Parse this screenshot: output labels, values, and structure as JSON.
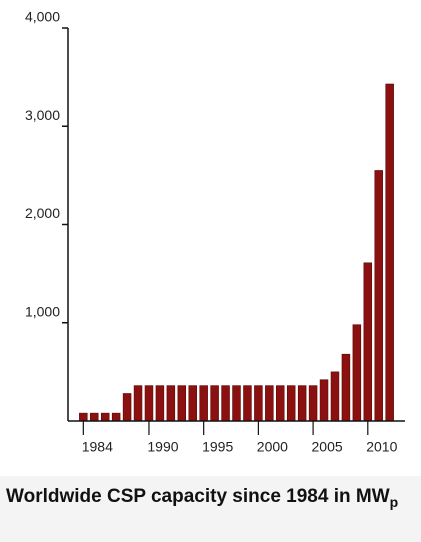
{
  "chart_data": {
    "type": "bar",
    "title": "Worldwide CSP capacity since 1984 in MW",
    "title_subscript": "p",
    "x": [
      1984,
      1985,
      1986,
      1987,
      1988,
      1989,
      1990,
      1991,
      1992,
      1993,
      1994,
      1995,
      1996,
      1997,
      1998,
      1999,
      2000,
      2001,
      2002,
      2003,
      2004,
      2005,
      2006,
      2007,
      2008,
      2009,
      2010,
      2011,
      2012
    ],
    "values": [
      80,
      80,
      80,
      80,
      280,
      360,
      360,
      360,
      360,
      360,
      360,
      360,
      360,
      360,
      360,
      360,
      360,
      360,
      360,
      360,
      360,
      360,
      420,
      500,
      680,
      980,
      1610,
      2550,
      3430
    ],
    "color": "#8b1010",
    "xlim": [
      1982.6,
      2013.4
    ],
    "xticks": [
      1984,
      1990,
      1995,
      2000,
      2005,
      2010
    ],
    "ylim": [
      0,
      4000
    ],
    "yticks": [
      {
        "value": 1000,
        "label": "1,000"
      },
      {
        "value": 2000,
        "label": "2,000"
      },
      {
        "value": 3000,
        "label": "3,000"
      },
      {
        "value": 4000,
        "label": "4,000"
      }
    ],
    "grid": false
  }
}
